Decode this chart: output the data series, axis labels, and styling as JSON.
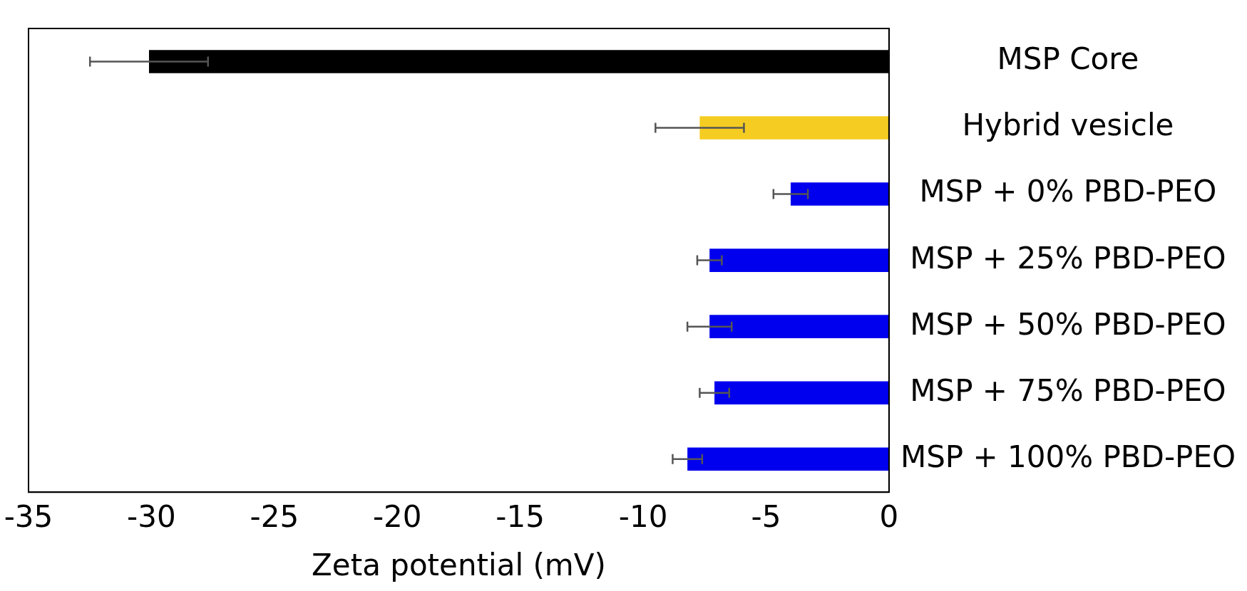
{
  "chart_data": {
    "type": "bar",
    "orientation": "horizontal",
    "xlabel": "Zeta potential (mV)",
    "categories": [
      "MSP Core",
      "Hybrid vesicle",
      "MSP + 0% PBD-PEO",
      "MSP + 25% PBD-PEO",
      "MSP + 50% PBD-PEO",
      "MSP + 75% PBD-PEO",
      "MSP + 100% PBD-PEO"
    ],
    "values": [
      -30.1,
      -7.7,
      -4.0,
      -7.3,
      -7.3,
      -7.1,
      -8.2
    ],
    "errors": [
      2.4,
      1.8,
      0.7,
      0.5,
      0.9,
      0.6,
      0.6
    ],
    "colors": [
      "#000000",
      "#f5cc22",
      "#0000ee",
      "#0000ee",
      "#0000ee",
      "#0000ee",
      "#0000ee"
    ],
    "xlim": [
      -35,
      0
    ],
    "xticks": [
      -35,
      -30,
      -25,
      -20,
      -15,
      -10,
      -5,
      0
    ],
    "grid": false,
    "legend": false
  }
}
